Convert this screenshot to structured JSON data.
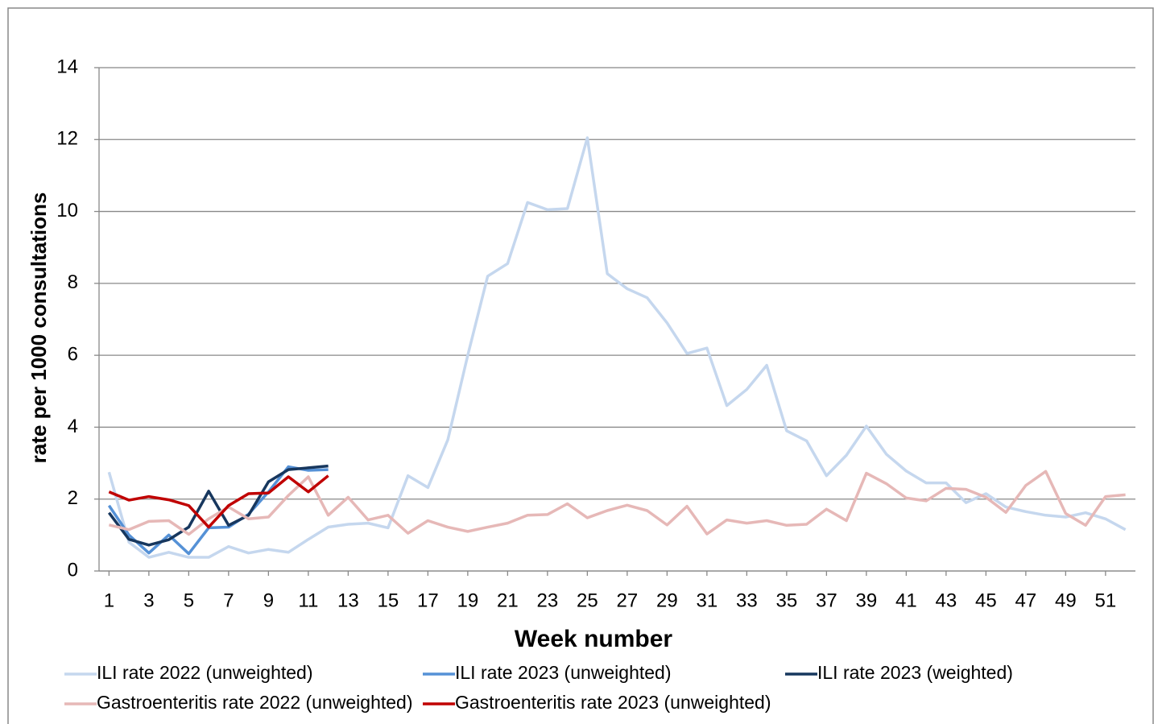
{
  "chart_data": {
    "type": "line",
    "x_label": "Week number",
    "y_label": "rate per 1000 consultations",
    "x": [
      1,
      2,
      3,
      4,
      5,
      6,
      7,
      8,
      9,
      10,
      11,
      12,
      13,
      14,
      15,
      16,
      17,
      18,
      19,
      20,
      21,
      22,
      23,
      24,
      25,
      26,
      27,
      28,
      29,
      30,
      31,
      32,
      33,
      34,
      35,
      36,
      37,
      38,
      39,
      40,
      41,
      42,
      43,
      44,
      45,
      46,
      47,
      48,
      49,
      50,
      51,
      52
    ],
    "xlim": [
      0.5,
      52.5
    ],
    "xticks": [
      1,
      3,
      5,
      7,
      9,
      11,
      13,
      15,
      17,
      19,
      21,
      23,
      25,
      27,
      29,
      31,
      33,
      35,
      37,
      39,
      41,
      43,
      45,
      47,
      49,
      51
    ],
    "ylim": [
      0,
      14
    ],
    "yticks": [
      0,
      2,
      4,
      6,
      8,
      10,
      12,
      14
    ],
    "grid": true,
    "legend": "bottom",
    "series": [
      {
        "name": "ILI rate 2022 (unweighted)",
        "color": "#c5d7ee",
        "values": [
          2.75,
          0.8,
          0.38,
          0.52,
          0.38,
          0.38,
          0.68,
          0.5,
          0.6,
          0.52,
          0.88,
          1.22,
          1.3,
          1.33,
          1.2,
          2.65,
          2.32,
          3.65,
          6.0,
          8.2,
          8.55,
          10.25,
          10.05,
          10.08,
          12.05,
          8.27,
          7.85,
          7.6,
          6.9,
          6.05,
          6.2,
          4.6,
          5.05,
          5.72,
          3.9,
          3.62,
          2.65,
          3.22,
          4.03,
          3.25,
          2.78,
          2.45,
          2.45,
          1.9,
          2.15,
          1.78,
          1.65,
          1.55,
          1.5,
          1.62,
          1.45,
          1.15
        ]
      },
      {
        "name": "ILI rate 2023 (unweighted)",
        "color": "#5591d6",
        "values": [
          1.82,
          1.0,
          0.5,
          1.0,
          0.48,
          1.2,
          1.22,
          1.58,
          2.2,
          2.9,
          2.8,
          2.82,
          null,
          null,
          null,
          null,
          null,
          null,
          null,
          null,
          null,
          null,
          null,
          null,
          null,
          null,
          null,
          null,
          null,
          null,
          null,
          null,
          null,
          null,
          null,
          null,
          null,
          null,
          null,
          null,
          null,
          null,
          null,
          null,
          null,
          null,
          null,
          null,
          null,
          null,
          null,
          null
        ]
      },
      {
        "name": "ILI rate 2023 (weighted)",
        "color": "#17375e",
        "values": [
          1.62,
          0.88,
          0.72,
          0.87,
          1.22,
          2.22,
          1.27,
          1.55,
          2.48,
          2.82,
          2.87,
          2.92,
          null,
          null,
          null,
          null,
          null,
          null,
          null,
          null,
          null,
          null,
          null,
          null,
          null,
          null,
          null,
          null,
          null,
          null,
          null,
          null,
          null,
          null,
          null,
          null,
          null,
          null,
          null,
          null,
          null,
          null,
          null,
          null,
          null,
          null,
          null,
          null,
          null,
          null,
          null,
          null
        ]
      },
      {
        "name": "Gastroenteritis rate 2022 (unweighted)",
        "color": "#e6b8b7",
        "values": [
          1.28,
          1.15,
          1.38,
          1.4,
          1.02,
          1.45,
          1.78,
          1.45,
          1.5,
          2.1,
          2.62,
          1.55,
          2.05,
          1.42,
          1.55,
          1.05,
          1.4,
          1.22,
          1.1,
          1.22,
          1.33,
          1.55,
          1.57,
          1.87,
          1.48,
          1.68,
          1.83,
          1.68,
          1.28,
          1.8,
          1.03,
          1.42,
          1.33,
          1.4,
          1.27,
          1.3,
          1.72,
          1.4,
          2.72,
          2.43,
          2.03,
          1.95,
          2.3,
          2.27,
          2.05,
          1.63,
          2.38,
          2.77,
          1.6,
          1.27,
          2.07,
          2.12
        ]
      },
      {
        "name": "Gastroenteritis rate 2023 (unweighted)",
        "color": "#c00000",
        "values": [
          2.2,
          1.97,
          2.07,
          1.98,
          1.82,
          1.22,
          1.82,
          2.15,
          2.17,
          2.62,
          2.2,
          2.65,
          null,
          null,
          null,
          null,
          null,
          null,
          null,
          null,
          null,
          null,
          null,
          null,
          null,
          null,
          null,
          null,
          null,
          null,
          null,
          null,
          null,
          null,
          null,
          null,
          null,
          null,
          null,
          null,
          null,
          null,
          null,
          null,
          null,
          null,
          null,
          null,
          null,
          null,
          null,
          null
        ]
      }
    ]
  }
}
